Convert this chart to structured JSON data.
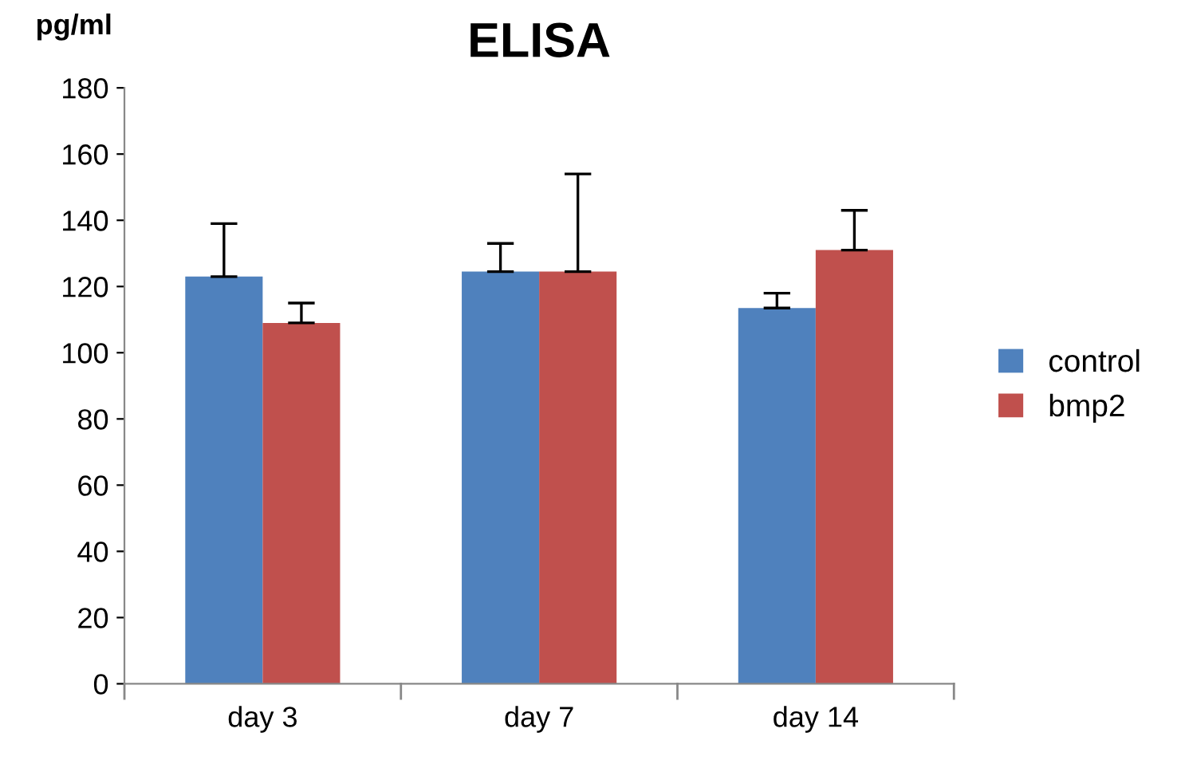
{
  "chart_data": {
    "type": "bar",
    "title": "ELISA",
    "ylabel": "pg/ml",
    "categories": [
      "day 3",
      "day 7",
      "day 14"
    ],
    "series": [
      {
        "name": "control",
        "color": "#4f81bd",
        "values": [
          123,
          124.5,
          113.5
        ],
        "errors": [
          [
            123,
            139
          ],
          [
            124.5,
            133
          ],
          [
            113.5,
            118
          ]
        ]
      },
      {
        "name": "bmp2",
        "color": "#c0504d",
        "values": [
          109,
          124.5,
          131
        ],
        "errors": [
          [
            109,
            115
          ],
          [
            124.5,
            154
          ],
          [
            131,
            143
          ]
        ]
      }
    ],
    "ylim": [
      0,
      180
    ],
    "yticks": [
      0,
      20,
      40,
      60,
      80,
      100,
      120,
      140,
      160,
      180
    ],
    "grid": false,
    "legend": "right"
  }
}
